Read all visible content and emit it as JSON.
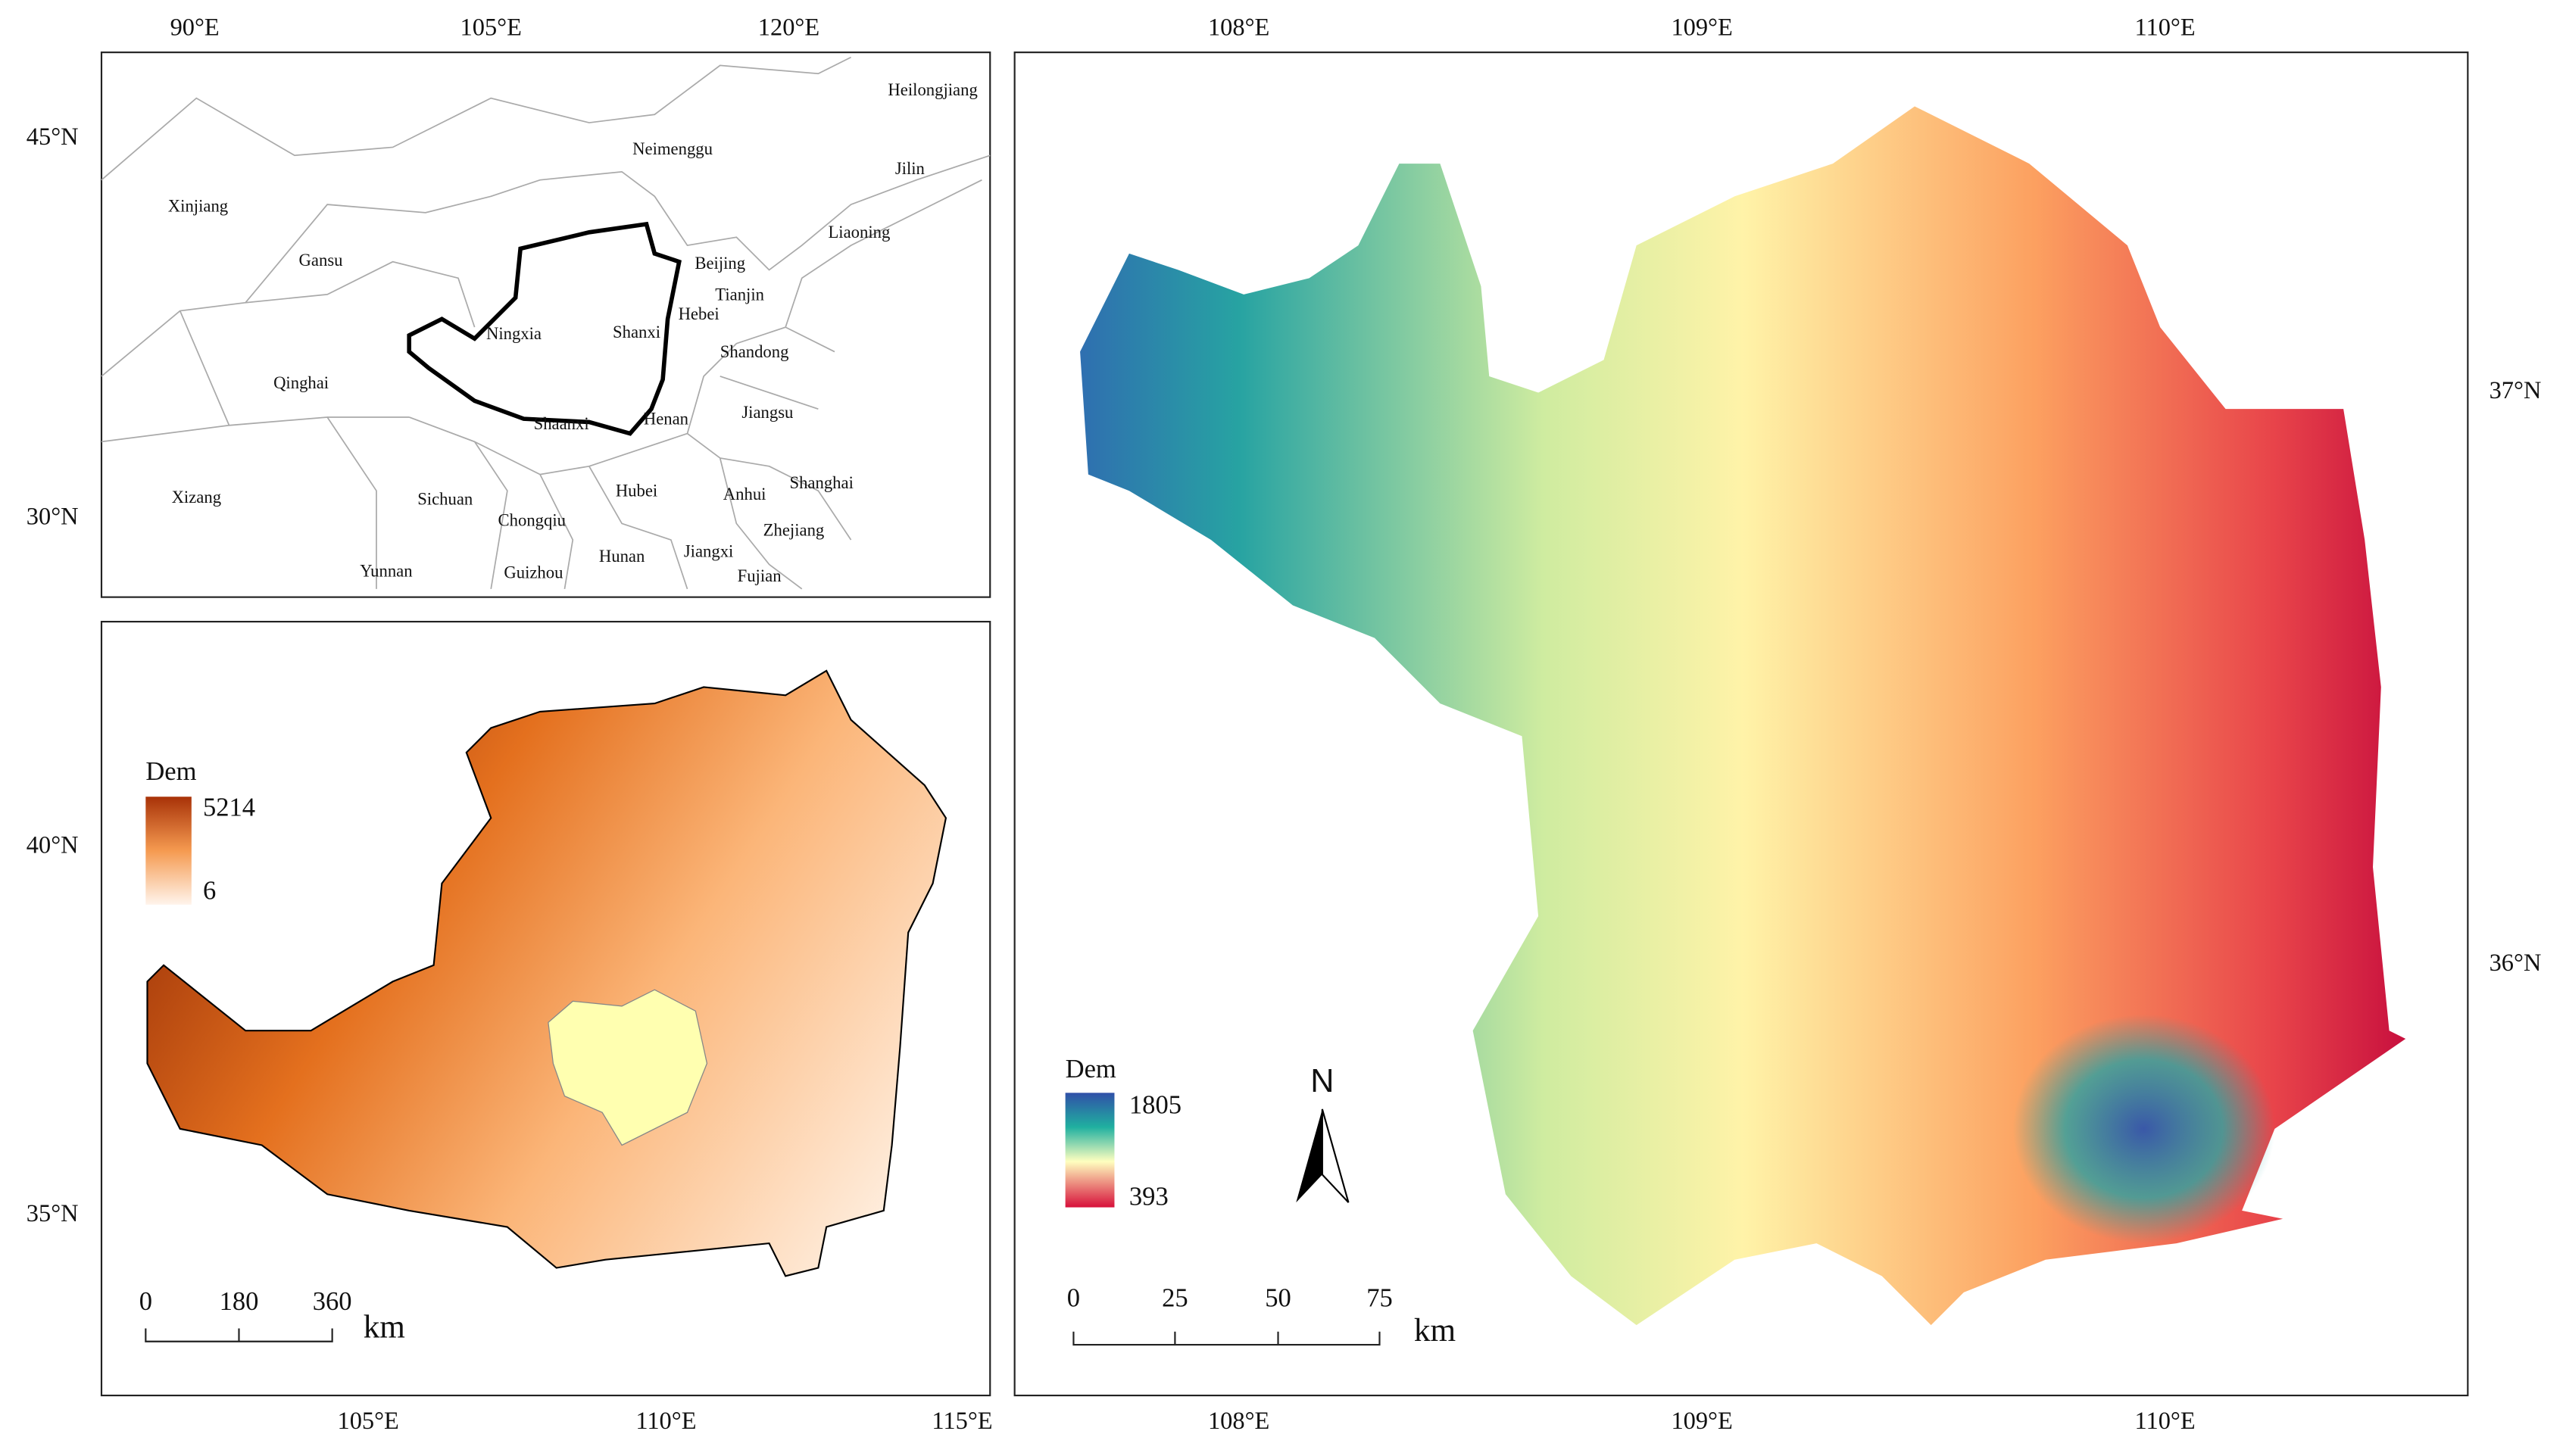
{
  "inset_map": {
    "lon_labels": [
      "90°E",
      "105°E",
      "120°E"
    ],
    "lat_labels": [
      "45°N",
      "30°N"
    ],
    "provinces": [
      "Heilongjiang",
      "Jilin",
      "Xinjiang",
      "Neimenggu",
      "Liaoning",
      "Gansu",
      "Beijing",
      "Tianjin",
      "Hebei",
      "Ningxia",
      "Shanxi",
      "Shandong",
      "Qinghai",
      "Jiangsu",
      "Shaanxi",
      "Henan",
      "Shanghai",
      "Xizang",
      "Sichuan",
      "Hubei",
      "Anhui",
      "Chongqiu",
      "Zhejiang",
      "Yunnan",
      "Guizhou",
      "Hunan",
      "Jiangxi",
      "Fujian"
    ]
  },
  "loess_plateau_map": {
    "lon_labels": [
      "105°E",
      "110°E",
      "115°E"
    ],
    "lat_labels": [
      "40°N",
      "35°N"
    ],
    "legend": {
      "title": "Dem",
      "max": 5214,
      "min": 6
    },
    "scale_bar": {
      "ticks": [
        0,
        180,
        360
      ],
      "unit": "km"
    }
  },
  "study_area_map": {
    "lon_labels": [
      "108°E",
      "109°E",
      "110°E"
    ],
    "lat_labels": [
      "37°N",
      "36°N"
    ],
    "legend": {
      "title": "Dem",
      "max": 1805,
      "min": 393
    },
    "north_arrow": "N",
    "scale_bar": {
      "ticks": [
        0,
        25,
        50,
        75
      ],
      "unit": "km"
    }
  }
}
